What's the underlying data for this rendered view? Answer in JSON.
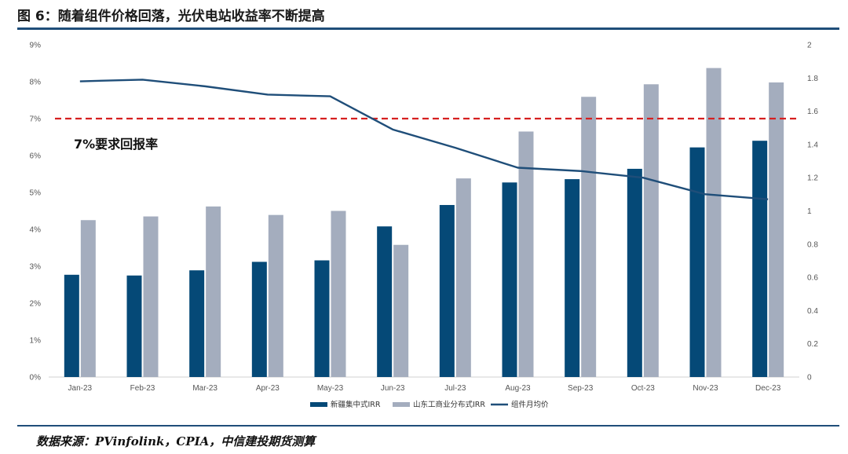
{
  "figure_title": "图 6：随着组件价格回落，光伏电站收益率不断提高",
  "source_note": "数据来源：PVinfolink，CPIA，中信建投期货测算",
  "colors": {
    "series_xinjiang": "#054977",
    "series_shandong": "#a4adbe",
    "series_module_price": "#1f4e79",
    "threshold_line": "#d62020",
    "rule": "#1f4e79"
  },
  "chart_data": {
    "type": "bar",
    "title": "",
    "xlabel": "",
    "ylabel": "",
    "categories": [
      "Jan-23",
      "Feb-23",
      "Mar-23",
      "Apr-23",
      "May-23",
      "Jun-23",
      "Jul-23",
      "Aug-23",
      "Sep-23",
      "Oct-23",
      "Nov-23",
      "Dec-23"
    ],
    "y_left": {
      "min": 0,
      "max": 9,
      "ticks": [
        "0%",
        "1%",
        "2%",
        "3%",
        "4%",
        "5%",
        "6%",
        "7%",
        "8%",
        "9%"
      ]
    },
    "y_right": {
      "min": 0,
      "max": 2,
      "ticks": [
        "0",
        "0.2",
        "0.4",
        "0.6",
        "0.8",
        "1",
        "1.2",
        "1.4",
        "1.6",
        "1.8",
        "2"
      ]
    },
    "series": [
      {
        "name": "新疆集中式IRR",
        "kind": "bar",
        "axis": "left",
        "unit": "%",
        "values": [
          2.77,
          2.75,
          2.89,
          3.12,
          3.16,
          4.08,
          4.66,
          5.27,
          5.36,
          5.64,
          6.22,
          6.4
        ]
      },
      {
        "name": "山东工商业分布式IRR",
        "kind": "bar",
        "axis": "left",
        "unit": "%",
        "values": [
          4.25,
          4.35,
          4.62,
          4.39,
          4.5,
          3.58,
          5.38,
          6.65,
          7.59,
          7.93,
          8.37,
          7.98
        ]
      },
      {
        "name": "组件月均价",
        "kind": "line",
        "axis": "right",
        "values": [
          1.78,
          1.79,
          1.75,
          1.7,
          1.69,
          1.49,
          1.38,
          1.26,
          1.24,
          1.2,
          1.1,
          1.07
        ]
      }
    ],
    "threshold": {
      "value": 7,
      "axis": "left",
      "label": "7%要求回报率"
    },
    "grid": false,
    "legend_position": "bottom-center"
  }
}
